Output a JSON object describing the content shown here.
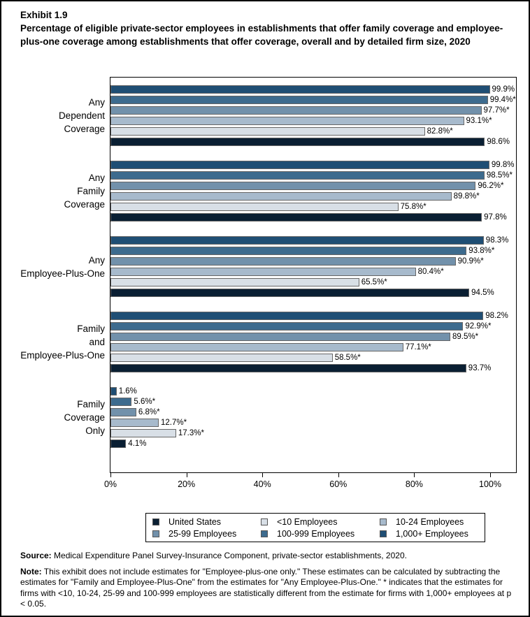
{
  "header": {
    "exhibit_label": "Exhibit 1.9",
    "title": "Percentage of eligible private-sector employees in establishments that offer family coverage and employee-plus-one coverage among establishments that offer coverage, overall and by detailed firm size, 2020"
  },
  "chart_data": {
    "type": "bar",
    "orientation": "horizontal",
    "title": "Percentage of eligible private-sector employees in establishments that offer family coverage and employee-plus-one coverage among establishments that offer coverage, overall and by detailed firm size, 2020",
    "xlim": [
      0,
      100
    ],
    "x_ticks": [
      {
        "label": "0%",
        "value": 0
      },
      {
        "label": "20%",
        "value": 20
      },
      {
        "label": "40%",
        "value": 40
      },
      {
        "label": "60%",
        "value": 60
      },
      {
        "label": "80%",
        "value": 80
      },
      {
        "label": "100%",
        "value": 100
      }
    ],
    "grid": false,
    "categories": [
      "Any Dependent Coverage",
      "Any Family Coverage",
      "Any Employee-Plus-One",
      "Family and Employee-Plus-One",
      "Family Coverage Only"
    ],
    "category_label_lines": [
      [
        "Any",
        "Dependent",
        "Coverage"
      ],
      [
        "Any",
        "Family",
        "Coverage"
      ],
      [
        "Any",
        "Employee-Plus-One"
      ],
      [
        "Family",
        "and",
        "Employee-Plus-One"
      ],
      [
        "Family",
        "Coverage",
        "Only"
      ]
    ],
    "bar_order_top_to_bottom": [
      "1,000+ Employees",
      "100-999 Employees",
      "25-99 Employees",
      "10-24 Employees",
      "<10 Employees",
      "United States"
    ],
    "series": [
      {
        "name": "1,000+ Employees",
        "color": "#1f4e74",
        "values": [
          99.9,
          99.8,
          98.3,
          98.2,
          1.6
        ],
        "labels": [
          "99.9%",
          "99.8%",
          "98.3%",
          "98.2%",
          "1.6%"
        ]
      },
      {
        "name": "100-999 Employees",
        "color": "#3d6b8e",
        "values": [
          99.4,
          98.5,
          93.8,
          92.9,
          5.6
        ],
        "labels": [
          "99.4%*",
          "98.5%*",
          "93.8%*",
          "92.9%*",
          "5.6%*"
        ]
      },
      {
        "name": "25-99 Employees",
        "color": "#7291ab",
        "values": [
          97.7,
          96.2,
          90.9,
          89.5,
          6.8
        ],
        "labels": [
          "97.7%*",
          "96.2%*",
          "90.9%*",
          "89.5%*",
          "6.8%*"
        ]
      },
      {
        "name": "10-24 Employees",
        "color": "#a7bacc",
        "values": [
          93.1,
          89.8,
          80.4,
          77.1,
          12.7
        ],
        "labels": [
          "93.1%*",
          "89.8%*",
          "80.4%*",
          "77.1%*",
          "12.7%*"
        ]
      },
      {
        "name": "<10 Employees",
        "color": "#d8dfe6",
        "values": [
          82.8,
          75.8,
          65.5,
          58.5,
          17.3
        ],
        "labels": [
          "82.8%*",
          "75.8%*",
          "65.5%*",
          "58.5%*",
          "17.3%*"
        ]
      },
      {
        "name": "United States",
        "color": "#0a1f33",
        "values": [
          98.6,
          97.8,
          94.5,
          93.7,
          4.1
        ],
        "labels": [
          "98.6%",
          "97.8%",
          "94.5%",
          "93.7%",
          "4.1%"
        ]
      }
    ],
    "legend": {
      "position": "bottom",
      "rows": [
        [
          {
            "label": "United States",
            "color": "#0a1f33"
          },
          {
            "label": "<10 Employees",
            "color": "#d8dfe6"
          },
          {
            "label": "10-24 Employees",
            "color": "#a7bacc"
          }
        ],
        [
          {
            "label": "25-99 Employees",
            "color": "#7291ab"
          },
          {
            "label": "100-999 Employees",
            "color": "#3d6b8e"
          },
          {
            "label": "1,000+ Employees",
            "color": "#1f4e74"
          }
        ]
      ]
    }
  },
  "footer": {
    "source_label": "Source:",
    "source_text": " Medical Expenditure Panel Survey-Insurance Component, private-sector establishments, 2020.",
    "note_label": "Note:",
    "note_text": " This exhibit does not include estimates for \"Employee-plus-one only.\" These estimates can be calculated by subtracting the estimates for \"Family and Employee-Plus-One\" from the estimates for \"Any Employee-Plus-One.\" * indicates that the estimates for firms with <10, 10-24, 25-99 and 100-999 employees are statistically different from the estimate for firms with 1,000+ employees at p < 0.05."
  }
}
